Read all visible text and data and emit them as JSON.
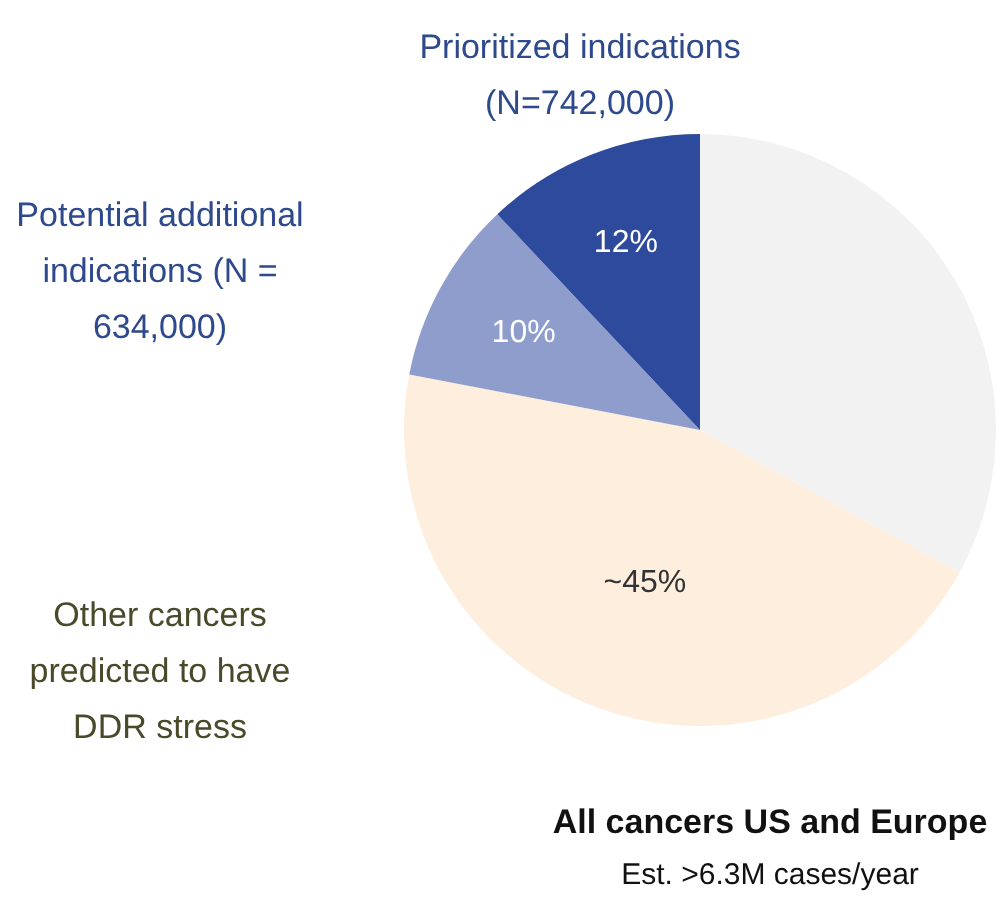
{
  "chart_data": {
    "type": "pie",
    "title": "All cancers US and Europe",
    "subtitle": "Est. >6.3M cases/year",
    "categories": [
      null,
      "Other cancers predicted to have DDR stress",
      "Potential additional indications (N = 634,000)",
      "Prioritized indications (N=742,000)"
    ],
    "values": [
      33,
      45,
      10,
      12
    ],
    "colors": [
      "#f2f2f2",
      "#fdeedd",
      "#8e9dcc",
      "#2e4a9c"
    ],
    "value_labels": [
      null,
      "~45%",
      "10%",
      "12%"
    ],
    "legend": false
  }
}
